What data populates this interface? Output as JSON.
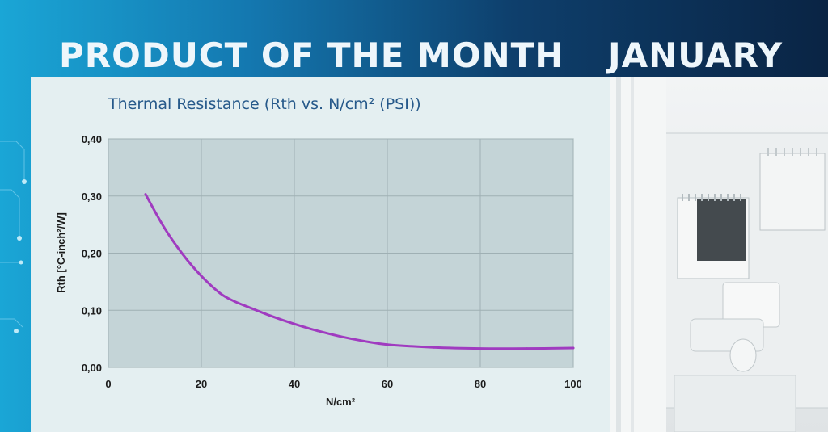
{
  "banner": {
    "title": "PRODUCT OF THE MONTH",
    "month": "JANUARY"
  },
  "colors": {
    "curve": "#a03bc0",
    "plot_background": "#c4d4d7",
    "banner_text": "#eef6fb",
    "title_text": "#26598a"
  },
  "chart_data": {
    "type": "line",
    "title": "Thermal Resistance (Rth vs. N/cm² (PSI))",
    "xlabel": "N/cm²",
    "ylabel": "Rth [°C-inch²/W]",
    "xlim": [
      0,
      100
    ],
    "ylim": [
      0,
      0.4
    ],
    "x_ticks": [
      0,
      20,
      40,
      60,
      80,
      100
    ],
    "x_tick_labels": [
      "0",
      "20",
      "40",
      "60",
      "80",
      "100"
    ],
    "y_ticks": [
      0,
      0.1,
      0.2,
      0.3,
      0.4
    ],
    "y_tick_labels": [
      "0,00",
      "0,10",
      "0,20",
      "0,30",
      "0,40"
    ],
    "grid": true,
    "series": [
      {
        "x": [
          8,
          12,
          16,
          20,
          24,
          27,
          30,
          35,
          40,
          45,
          50,
          55,
          60,
          70,
          80,
          90,
          100
        ],
        "y": [
          0.303,
          0.245,
          0.198,
          0.16,
          0.13,
          0.116,
          0.106,
          0.09,
          0.076,
          0.064,
          0.054,
          0.046,
          0.04,
          0.035,
          0.033,
          0.033,
          0.034
        ]
      }
    ]
  }
}
